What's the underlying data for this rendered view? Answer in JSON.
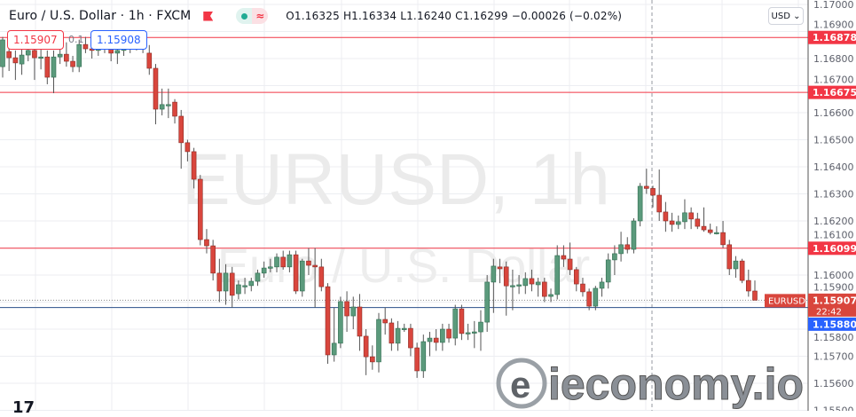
{
  "header": {
    "symbol_title": "Euro / U.S. Dollar · 1h · FXCM",
    "ohlc": "O1.16325 H1.16334 L1.16240 C1.16299 −0.00026 (−0.02%)",
    "flag_icon": "flag-icon",
    "indicator_icons": [
      "dot-icon",
      "wave-icon"
    ],
    "wave_glyph": "≈"
  },
  "trade": {
    "sell_price": "1.15907",
    "spread": "0.1",
    "buy_price": "1.15908"
  },
  "currency_button": "USD ⌄",
  "watermark": {
    "main": "EURUSD, 1h",
    "sub": "Euro / U.S. Dollar"
  },
  "logo": {
    "text": "ieconomy.io",
    "tv": "17"
  },
  "colors": {
    "up": "#5b9a7c",
    "down": "#d9463d",
    "level_line": "#f23645",
    "bid_line": "#2a4f8a",
    "ask_badge": "#2962ff"
  },
  "chart_data": {
    "type": "candlestick",
    "symbol": "EURUSD",
    "timeframe": "1h",
    "ylim": [
      1.155,
      1.17
    ],
    "y_ticks": [
      "1.17000",
      "1.16900",
      "1.16800",
      "1.16700",
      "1.16600",
      "1.16500",
      "1.16400",
      "1.16300",
      "1.16200",
      "1.16100",
      "1.16000",
      "1.15900",
      "1.15800",
      "1.15700",
      "1.15600",
      "1.15500"
    ],
    "grid": true,
    "horizontal_levels": [
      {
        "price": 1.16878,
        "label": "1.16878"
      },
      {
        "price": 1.16675,
        "label": "1.16675"
      },
      {
        "price": 1.16099,
        "label": "1.16099"
      }
    ],
    "last_price": {
      "price": 1.15907,
      "label": "1.15907",
      "countdown": "22:42",
      "tag": "EURUSD"
    },
    "bid_line": {
      "price": 1.1588,
      "label": "1.15880"
    },
    "candles": [
      [
        1.1677,
        1.1688,
        1.1673,
        1.16869
      ],
      [
        1.16826,
        1.1686,
        1.16754,
        1.16803
      ],
      [
        1.16803,
        1.1683,
        1.16721,
        1.16784
      ],
      [
        1.1678,
        1.1684,
        1.1674,
        1.16813
      ],
      [
        1.16813,
        1.1685,
        1.1679,
        1.1683
      ],
      [
        1.1683,
        1.1686,
        1.16721,
        1.16803
      ],
      [
        1.16806,
        1.1684,
        1.1676,
        1.16806
      ],
      [
        1.16806,
        1.1683,
        1.16705,
        1.16731
      ],
      [
        1.16731,
        1.1683,
        1.16672,
        1.16806
      ],
      [
        1.16806,
        1.1684,
        1.1678,
        1.16816
      ],
      [
        1.16816,
        1.1686,
        1.1677,
        1.1679
      ],
      [
        1.1679,
        1.1681,
        1.1675,
        1.1677
      ],
      [
        1.1677,
        1.1687,
        1.1675,
        1.16852
      ],
      [
        1.16852,
        1.1688,
        1.1682,
        1.16836
      ],
      [
        1.16836,
        1.1686,
        1.168,
        1.1683
      ],
      [
        1.1683,
        1.1685,
        1.1681,
        1.1684
      ],
      [
        1.1684,
        1.1687,
        1.1682,
        1.16845
      ],
      [
        1.16845,
        1.1686,
        1.1679,
        1.1682
      ],
      [
        1.1682,
        1.1685,
        1.1678,
        1.1683
      ],
      [
        1.1683,
        1.1686,
        1.1681,
        1.1684
      ],
      [
        1.1684,
        1.1688,
        1.1682,
        1.1685
      ],
      [
        1.1685,
        1.1687,
        1.1683,
        1.16845
      ],
      [
        1.16845,
        1.169,
        1.1682,
        1.16852
      ],
      [
        1.1682,
        1.1685,
        1.1674,
        1.16764
      ],
      [
        1.16764,
        1.1678,
        1.16557,
        1.16613
      ],
      [
        1.16613,
        1.16689,
        1.1659,
        1.1663
      ],
      [
        1.1663,
        1.16689,
        1.1658,
        1.1663
      ],
      [
        1.16639,
        1.1665,
        1.1656,
        1.16587
      ],
      [
        1.16587,
        1.1661,
        1.16393,
        1.16489
      ],
      [
        1.16489,
        1.165,
        1.1642,
        1.16456
      ],
      [
        1.16456,
        1.1647,
        1.1632,
        1.16354
      ],
      [
        1.16354,
        1.1637,
        1.1611,
        1.16131
      ],
      [
        1.16131,
        1.1617,
        1.1608,
        1.16108
      ],
      [
        1.16108,
        1.1613,
        1.1598,
        1.16007
      ],
      [
        1.16007,
        1.1606,
        1.159,
        1.15941
      ],
      [
        1.15941,
        1.1604,
        1.1589,
        1.16007
      ],
      [
        1.16007,
        1.1603,
        1.1588,
        1.15925
      ],
      [
        1.15931,
        1.1598,
        1.1591,
        1.15964
      ],
      [
        1.15961,
        1.1599,
        1.1593,
        1.15961
      ],
      [
        1.15961,
        1.1599,
        1.1594,
        1.15977
      ],
      [
        1.15977,
        1.1602,
        1.1596,
        1.16007
      ],
      [
        1.16007,
        1.1605,
        1.1599,
        1.16026
      ],
      [
        1.1603,
        1.1606,
        1.1601,
        1.1603
      ],
      [
        1.1603,
        1.1608,
        1.1601,
        1.16066
      ],
      [
        1.16066,
        1.1609,
        1.1602,
        1.1603
      ],
      [
        1.1603,
        1.1609,
        1.1601,
        1.16075
      ],
      [
        1.16075,
        1.1609,
        1.1593,
        1.15941
      ],
      [
        1.15941,
        1.1606,
        1.1592,
        1.16052
      ],
      [
        1.16052,
        1.161,
        1.16,
        1.16036
      ],
      [
        1.16036,
        1.161,
        1.1588,
        1.1603
      ],
      [
        1.1603,
        1.1606,
        1.1594,
        1.15957
      ],
      [
        1.15957,
        1.1597,
        1.15672,
        1.15705
      ],
      [
        1.15705,
        1.1588,
        1.1568,
        1.15748
      ],
      [
        1.15748,
        1.1592,
        1.1573,
        1.15902
      ],
      [
        1.15902,
        1.1594,
        1.1579,
        1.15849
      ],
      [
        1.15849,
        1.1592,
        1.158,
        1.15882
      ],
      [
        1.15882,
        1.1593,
        1.1572,
        1.15774
      ],
      [
        1.15774,
        1.158,
        1.1563,
        1.15698
      ],
      [
        1.15698,
        1.1574,
        1.1565,
        1.15679
      ],
      [
        1.15679,
        1.1586,
        1.1564,
        1.15836
      ],
      [
        1.15836,
        1.1588,
        1.1578,
        1.15823
      ],
      [
        1.15823,
        1.1584,
        1.1572,
        1.15748
      ],
      [
        1.15748,
        1.1583,
        1.1572,
        1.15803
      ],
      [
        1.15803,
        1.1582,
        1.1579,
        1.15803
      ],
      [
        1.15803,
        1.1582,
        1.157,
        1.15731
      ],
      [
        1.15731,
        1.1575,
        1.1562,
        1.15646
      ],
      [
        1.15646,
        1.1578,
        1.1562,
        1.15754
      ],
      [
        1.15754,
        1.1579,
        1.157,
        1.15767
      ],
      [
        1.15767,
        1.158,
        1.1572,
        1.15751
      ],
      [
        1.15751,
        1.1582,
        1.1572,
        1.158
      ],
      [
        1.158,
        1.1582,
        1.1575,
        1.15767
      ],
      [
        1.15767,
        1.1589,
        1.1574,
        1.15875
      ],
      [
        1.15875,
        1.1589,
        1.1576,
        1.15784
      ],
      [
        1.15784,
        1.1582,
        1.1576,
        1.15787
      ],
      [
        1.15787,
        1.1583,
        1.1573,
        1.1579
      ],
      [
        1.1579,
        1.1587,
        1.1572,
        1.15826
      ],
      [
        1.15826,
        1.16,
        1.1579,
        1.15974
      ],
      [
        1.15974,
        1.1606,
        1.1586,
        1.16033
      ],
      [
        1.1603,
        1.1606,
        1.1597,
        1.16023
      ],
      [
        1.1603,
        1.1605,
        1.1585,
        1.1596
      ],
      [
        1.15961,
        1.1602,
        1.1587,
        1.15961
      ],
      [
        1.15961,
        1.16,
        1.1593,
        1.15964
      ],
      [
        1.15961,
        1.1601,
        1.1593,
        1.15987
      ],
      [
        1.15987,
        1.1602,
        1.1594,
        1.15967
      ],
      [
        1.15964,
        1.1599,
        1.1592,
        1.15974
      ],
      [
        1.15974,
        1.1599,
        1.159,
        1.15921
      ],
      [
        1.15921,
        1.1595,
        1.159,
        1.15928
      ],
      [
        1.15928,
        1.1611,
        1.1591,
        1.16072
      ],
      [
        1.16072,
        1.1611,
        1.1603,
        1.16059
      ],
      [
        1.16059,
        1.1612,
        1.16,
        1.1602
      ],
      [
        1.1602,
        1.1603,
        1.1594,
        1.15967
      ],
      [
        1.15967,
        1.1599,
        1.1592,
        1.15938
      ],
      [
        1.15938,
        1.1595,
        1.1587,
        1.15885
      ],
      [
        1.15885,
        1.1596,
        1.1587,
        1.15951
      ],
      [
        1.15951,
        1.1599,
        1.1592,
        1.15974
      ],
      [
        1.15974,
        1.1608,
        1.1595,
        1.16056
      ],
      [
        1.16056,
        1.1611,
        1.16,
        1.16079
      ],
      [
        1.16079,
        1.1616,
        1.1605,
        1.16112
      ],
      [
        1.16112,
        1.1614,
        1.1608,
        1.16095
      ],
      [
        1.16095,
        1.1621,
        1.1608,
        1.162
      ],
      [
        1.162,
        1.1634,
        1.1618,
        1.16328
      ],
      [
        1.16328,
        1.16393,
        1.163,
        1.1632
      ],
      [
        1.1632,
        1.1633,
        1.1625,
        1.16295
      ],
      [
        1.16295,
        1.1639,
        1.162,
        1.16233
      ],
      [
        1.16233,
        1.1627,
        1.1616,
        1.162
      ],
      [
        1.162,
        1.1623,
        1.1616,
        1.16187
      ],
      [
        1.16187,
        1.1622,
        1.1617,
        1.16197
      ],
      [
        1.16197,
        1.1628,
        1.1617,
        1.1623
      ],
      [
        1.1623,
        1.1625,
        1.1617,
        1.16207
      ],
      [
        1.16207,
        1.1623,
        1.1617,
        1.1618
      ],
      [
        1.1618,
        1.1625,
        1.1616,
        1.16167
      ],
      [
        1.16167,
        1.1619,
        1.1615,
        1.16157
      ],
      [
        1.16157,
        1.1618,
        1.1615,
        1.16157
      ],
      [
        1.16157,
        1.162,
        1.161,
        1.16112
      ],
      [
        1.16112,
        1.1613,
        1.16,
        1.16023
      ],
      [
        1.16023,
        1.1607,
        1.1599,
        1.16052
      ],
      [
        1.16052,
        1.1606,
        1.1597,
        1.1598
      ],
      [
        1.1598,
        1.1602,
        1.1592,
        1.15941
      ],
      [
        1.15941,
        1.1598,
        1.15907,
        1.15907
      ]
    ]
  }
}
